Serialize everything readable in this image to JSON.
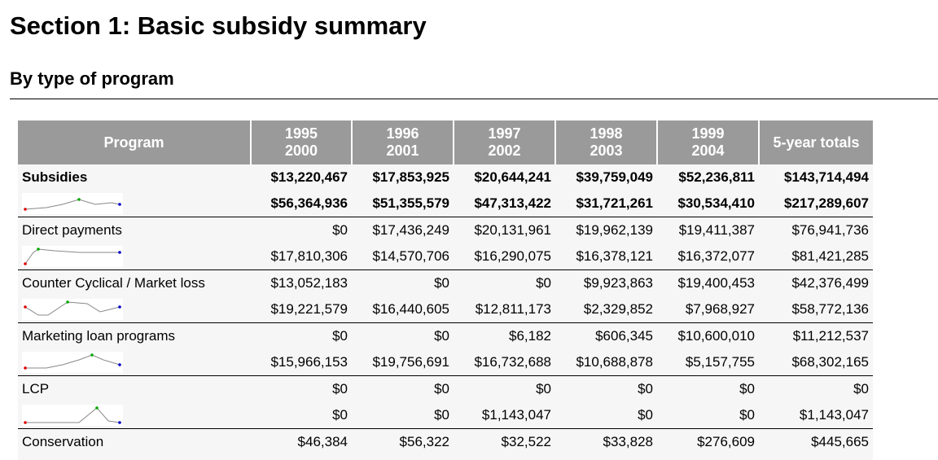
{
  "header": {
    "title": "Section 1: Basic subsidy summary",
    "subtitle": "By type of program"
  },
  "table": {
    "columns": [
      [
        "Program"
      ],
      [
        "1995",
        "2000"
      ],
      [
        "1996",
        "2001"
      ],
      [
        "1997",
        "2002"
      ],
      [
        "1998",
        "2003"
      ],
      [
        "1999",
        "2004"
      ],
      [
        "5-year totals"
      ]
    ],
    "rows": [
      {
        "program": "Subsidies",
        "lines": [
          [
            "$13,220,467",
            "$17,853,925",
            "$20,644,241",
            "$39,759,049",
            "$52,236,811",
            "$143,714,494"
          ],
          [
            "$56,364,936",
            "$51,355,579",
            "$47,313,422",
            "$31,721,261",
            "$30,534,410",
            "$217,289,607"
          ]
        ]
      },
      {
        "program": "Direct payments",
        "lines": [
          [
            "$0",
            "$17,436,249",
            "$20,131,961",
            "$19,962,139",
            "$19,411,387",
            "$76,941,736"
          ],
          [
            "$17,810,306",
            "$14,570,706",
            "$16,290,075",
            "$16,378,121",
            "$16,372,077",
            "$81,421,285"
          ]
        ]
      },
      {
        "program": "Counter Cyclical / Market loss",
        "lines": [
          [
            "$13,052,183",
            "$0",
            "$0",
            "$9,923,863",
            "$19,400,453",
            "$42,376,499"
          ],
          [
            "$19,221,579",
            "$16,440,605",
            "$12,811,173",
            "$2,329,852",
            "$7,968,927",
            "$58,772,136"
          ]
        ]
      },
      {
        "program": "Marketing loan programs",
        "lines": [
          [
            "$0",
            "$0",
            "$6,182",
            "$606,345",
            "$10,600,010",
            "$11,212,537"
          ],
          [
            "$15,966,153",
            "$19,756,691",
            "$16,732,688",
            "$10,688,878",
            "$5,157,755",
            "$68,302,165"
          ]
        ]
      },
      {
        "program": "LCP",
        "lines": [
          [
            "$0",
            "$0",
            "$0",
            "$0",
            "$0",
            "$0"
          ],
          [
            "$0",
            "$0",
            "$1,143,047",
            "$0",
            "$0",
            "$1,143,047"
          ]
        ]
      },
      {
        "program": "Conservation",
        "lines": [
          [
            "$46,384",
            "$56,322",
            "$32,522",
            "$33,828",
            "$276,609",
            "$445,665"
          ]
        ]
      }
    ]
  }
}
